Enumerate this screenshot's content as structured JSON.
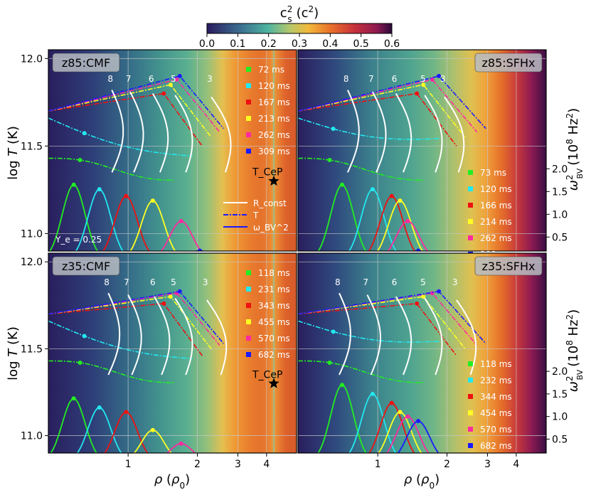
{
  "colorbar": {
    "label": "c_s^2 (c^2)",
    "ticks": [
      "0.0",
      "0.1",
      "0.2",
      "0.3",
      "0.4",
      "0.5",
      "0.6"
    ],
    "range": [
      0,
      0.6
    ]
  },
  "axes": {
    "xlabel": "ρ (ρ0)",
    "ylabel": "log T (K)",
    "y2label": "ω_BV^2 (10^8 Hz^2)",
    "xticks": [
      "1",
      "2",
      "3",
      "4"
    ],
    "yticks": [
      "11.0",
      "11.5",
      "12.0"
    ],
    "y2ticks": [
      "0.5",
      "1.0",
      "1.5",
      "2.0"
    ],
    "xlim": [
      0.45,
      5.4
    ],
    "ylim": [
      10.9,
      12.05
    ],
    "xscale": "log",
    "grid": true
  },
  "colors": {
    "green": "#22ee22",
    "cyan": "#22e8f0",
    "red": "#ee1111",
    "yellow": "#ffff22",
    "magenta": "#ff2aa0",
    "blue": "#1a1aff"
  },
  "annotations": {
    "ye": "Y_e = 0.25",
    "tcep": "T_CeP",
    "r_labels": [
      "8",
      "7",
      "6",
      "5",
      "3"
    ]
  },
  "legend_styles": {
    "r": "R_const",
    "t": "T",
    "w": "ω_BV^2"
  },
  "panels": [
    {
      "title": "z85:CMF",
      "times": [
        "72 ms",
        "120 ms",
        "167 ms",
        "213 ms",
        "262 ms",
        "309 ms"
      ]
    },
    {
      "title": "z85:SFHx",
      "times": [
        "73 ms",
        "120 ms",
        "166 ms",
        "214 ms",
        "262 ms",
        "308 ms"
      ]
    },
    {
      "title": "z35:CMF",
      "times": [
        "118 ms",
        "231 ms",
        "343 ms",
        "455 ms",
        "570 ms",
        "682 ms"
      ]
    },
    {
      "title": "z35:SFHx",
      "times": [
        "118 ms",
        "232 ms",
        "344 ms",
        "454 ms",
        "570 ms",
        "682 ms"
      ]
    }
  ],
  "chart_data": {
    "type": "line",
    "title": "",
    "x_quantity": "rho / rho0",
    "y_quantity": "log T",
    "tcep_point": {
      "rho": 4.3,
      "logT": 11.3
    },
    "series_temperature_cmf_z85": [
      {
        "time": "72 ms",
        "rho": [
          0.45,
          0.6,
          0.8,
          1.0,
          1.3,
          1.6
        ],
        "logT": [
          11.43,
          11.39,
          11.35,
          11.35,
          11.33,
          11.31
        ]
      },
      {
        "time": "120 ms",
        "rho": [
          0.45,
          0.6,
          0.8,
          1.0,
          1.3,
          1.8
        ],
        "logT": [
          11.66,
          11.61,
          11.57,
          11.54,
          11.53,
          11.45
        ]
      },
      {
        "time": "309 ms",
        "rho": [
          0.45,
          0.7,
          1.0,
          1.4,
          1.8,
          2.2,
          2.6
        ],
        "logT": [
          11.71,
          11.78,
          11.83,
          11.88,
          11.91,
          11.8,
          11.55
        ]
      }
    ],
    "series_wbv_cmf_z85": [
      {
        "time": "72 ms",
        "rho": [
          0.45,
          0.53,
          0.62,
          0.75,
          0.9
        ],
        "wbv": [
          1.55,
          1.65,
          1.45,
          0.8,
          0.2
        ]
      },
      {
        "time": "120 ms",
        "rho": [
          0.45,
          0.6,
          0.75,
          0.9,
          1.05
        ],
        "wbv": [
          0.6,
          1.5,
          1.5,
          1.0,
          0.3
        ]
      },
      {
        "time": "167 ms",
        "rho": [
          0.75,
          0.95,
          1.1,
          1.25,
          1.4
        ],
        "wbv": [
          0.3,
          1.25,
          1.35,
          1.0,
          0.2
        ]
      },
      {
        "time": "213 ms",
        "rho": [
          1.2,
          1.35,
          1.5,
          1.65,
          1.8
        ],
        "wbv": [
          0.2,
          0.8,
          1.4,
          0.8,
          0.15
        ]
      },
      {
        "time": "262 ms",
        "rho": [
          1.55,
          1.75,
          1.9,
          2.05
        ],
        "wbv": [
          0.15,
          0.7,
          0.8,
          0.1
        ]
      }
    ]
  }
}
